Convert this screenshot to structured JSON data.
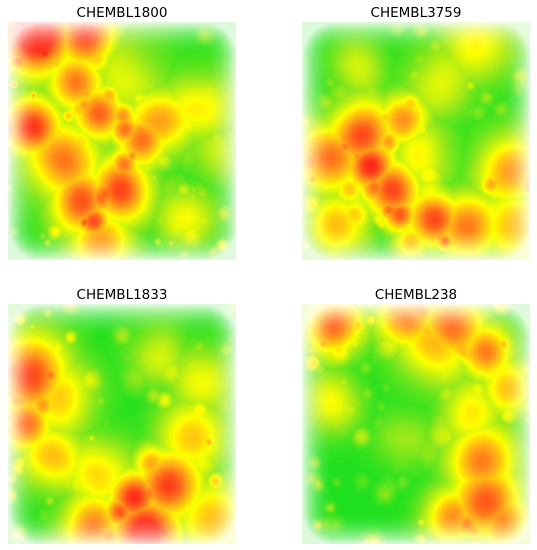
{
  "figure": {
    "colors": {
      "background": "#ffffff",
      "low": "#1fe01f",
      "mid_low": "#9be81a",
      "mid": "#ffff00",
      "mid_high": "#ff9d1a",
      "high": "#ff2a1a",
      "edge_fade": "#ffffff"
    },
    "colormap": [
      "#1fe01f",
      "#9be81a",
      "#ffff00",
      "#ff9d1a",
      "#ff2a1a"
    ]
  },
  "chart_data": [
    {
      "type": "heatmap",
      "title": "CHEMBL1800",
      "seed": 1800,
      "hotspots": [
        {
          "x": 0.12,
          "y": 0.05,
          "value": 1.0
        },
        {
          "x": 0.35,
          "y": 0.05,
          "value": 0.9
        },
        {
          "x": 0.1,
          "y": 0.45,
          "value": 0.95
        },
        {
          "x": 0.22,
          "y": 0.6,
          "value": 0.9
        },
        {
          "x": 0.3,
          "y": 0.75,
          "value": 0.95
        },
        {
          "x": 0.5,
          "y": 0.7,
          "value": 0.9
        },
        {
          "x": 0.6,
          "y": 0.5,
          "value": 0.9
        },
        {
          "x": 0.68,
          "y": 0.42,
          "value": 0.85
        },
        {
          "x": 0.4,
          "y": 0.38,
          "value": 0.8
        },
        {
          "x": 0.3,
          "y": 0.25,
          "value": 0.75
        },
        {
          "x": 0.55,
          "y": 0.2,
          "value": 0.6
        },
        {
          "x": 0.82,
          "y": 0.35,
          "value": 0.7
        },
        {
          "x": 0.9,
          "y": 0.55,
          "value": 0.55
        },
        {
          "x": 0.78,
          "y": 0.8,
          "value": 0.6
        },
        {
          "x": 0.4,
          "y": 0.92,
          "value": 0.7
        }
      ],
      "cold_regions": [
        {
          "x": 0.62,
          "y": 0.12,
          "value": 0.0
        },
        {
          "x": 0.85,
          "y": 0.15,
          "value": 0.0
        },
        {
          "x": 0.8,
          "y": 0.62,
          "value": 0.0
        },
        {
          "x": 0.05,
          "y": 0.75,
          "value": 0.0
        }
      ]
    },
    {
      "type": "heatmap",
      "title": "CHEMBL3759",
      "seed": 3759,
      "hotspots": [
        {
          "x": 0.25,
          "y": 0.45,
          "value": 0.95
        },
        {
          "x": 0.3,
          "y": 0.6,
          "value": 0.9
        },
        {
          "x": 0.45,
          "y": 0.4,
          "value": 0.9
        },
        {
          "x": 0.12,
          "y": 0.55,
          "value": 0.8
        },
        {
          "x": 0.4,
          "y": 0.7,
          "value": 0.85
        },
        {
          "x": 0.55,
          "y": 0.55,
          "value": 0.75
        },
        {
          "x": 0.6,
          "y": 0.25,
          "value": 0.65
        },
        {
          "x": 0.75,
          "y": 0.12,
          "value": 0.6
        },
        {
          "x": 0.9,
          "y": 0.6,
          "value": 0.8
        },
        {
          "x": 0.72,
          "y": 0.85,
          "value": 0.75
        },
        {
          "x": 0.58,
          "y": 0.82,
          "value": 0.85
        },
        {
          "x": 0.25,
          "y": 0.2,
          "value": 0.6
        },
        {
          "x": 0.15,
          "y": 0.85,
          "value": 0.6
        },
        {
          "x": 0.93,
          "y": 0.85,
          "value": 0.6
        }
      ],
      "cold_regions": [
        {
          "x": 0.65,
          "y": 0.55,
          "value": 0.0
        },
        {
          "x": 0.85,
          "y": 0.35,
          "value": 0.0
        },
        {
          "x": 0.1,
          "y": 0.3,
          "value": 0.0
        },
        {
          "x": 0.45,
          "y": 0.15,
          "value": 0.0
        }
      ]
    },
    {
      "type": "heatmap",
      "title": "CHEMBL1833",
      "seed": 1833,
      "hotspots": [
        {
          "x": 0.1,
          "y": 0.3,
          "value": 0.85
        },
        {
          "x": 0.08,
          "y": 0.5,
          "value": 0.8
        },
        {
          "x": 0.25,
          "y": 0.4,
          "value": 0.7
        },
        {
          "x": 0.2,
          "y": 0.65,
          "value": 0.75
        },
        {
          "x": 0.38,
          "y": 0.7,
          "value": 0.65
        },
        {
          "x": 0.55,
          "y": 0.8,
          "value": 0.9
        },
        {
          "x": 0.7,
          "y": 0.75,
          "value": 0.85
        },
        {
          "x": 0.6,
          "y": 0.95,
          "value": 0.95
        },
        {
          "x": 0.35,
          "y": 0.92,
          "value": 0.85
        },
        {
          "x": 0.8,
          "y": 0.55,
          "value": 0.6
        },
        {
          "x": 0.65,
          "y": 0.2,
          "value": 0.6
        },
        {
          "x": 0.85,
          "y": 0.3,
          "value": 0.55
        },
        {
          "x": 0.9,
          "y": 0.9,
          "value": 0.6
        }
      ],
      "cold_regions": [
        {
          "x": 0.45,
          "y": 0.45,
          "value": 0.0
        },
        {
          "x": 0.55,
          "y": 0.1,
          "value": 0.0
        },
        {
          "x": 0.9,
          "y": 0.1,
          "value": 0.0
        },
        {
          "x": 0.15,
          "y": 0.85,
          "value": 0.0
        }
      ]
    },
    {
      "type": "heatmap",
      "title": "CHEMBL238",
      "seed": 238,
      "hotspots": [
        {
          "x": 0.15,
          "y": 0.1,
          "value": 0.9
        },
        {
          "x": 0.45,
          "y": 0.08,
          "value": 0.85
        },
        {
          "x": 0.55,
          "y": 0.2,
          "value": 0.8
        },
        {
          "x": 0.65,
          "y": 0.1,
          "value": 0.8
        },
        {
          "x": 0.8,
          "y": 0.2,
          "value": 0.75
        },
        {
          "x": 0.9,
          "y": 0.35,
          "value": 0.6
        },
        {
          "x": 0.15,
          "y": 0.4,
          "value": 0.65
        },
        {
          "x": 0.72,
          "y": 0.45,
          "value": 0.6
        },
        {
          "x": 0.78,
          "y": 0.65,
          "value": 0.75
        },
        {
          "x": 0.8,
          "y": 0.82,
          "value": 0.8
        },
        {
          "x": 0.65,
          "y": 0.88,
          "value": 0.75
        },
        {
          "x": 0.88,
          "y": 0.9,
          "value": 0.7
        },
        {
          "x": 0.45,
          "y": 0.55,
          "value": 0.5
        }
      ],
      "cold_regions": [
        {
          "x": 0.4,
          "y": 0.75,
          "value": 0.0
        },
        {
          "x": 0.3,
          "y": 0.3,
          "value": 0.0
        },
        {
          "x": 0.1,
          "y": 0.8,
          "value": 0.0
        },
        {
          "x": 0.5,
          "y": 0.4,
          "value": 0.0
        }
      ]
    }
  ]
}
